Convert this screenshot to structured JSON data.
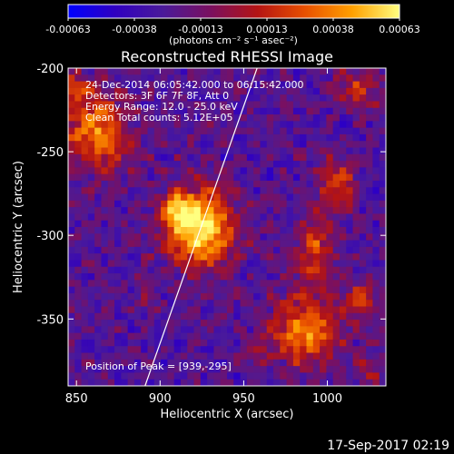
{
  "chart_data": {
    "type": "heatmap",
    "title": "Reconstructed RHESSI Image",
    "colorbar": {
      "ticks": [
        "-0.00063",
        "-0.00038",
        "-0.00013",
        "0.00013",
        "0.00038",
        "0.00063"
      ],
      "unit_label": "(photons cm⁻² s⁻¹ asec⁻²)",
      "range": [
        -0.00063,
        0.00063
      ],
      "colors": [
        "#0000ff",
        "#3000c0",
        "#4a1a9a",
        "#7a1060",
        "#b41414",
        "#e85000",
        "#ffa000",
        "#ffff80"
      ]
    },
    "xlabel": "Heliocentric X (arcsec)",
    "ylabel": "Heliocentric Y (arcsec)",
    "xlim": [
      845,
      1035
    ],
    "ylim": [
      -390,
      -200
    ],
    "xticks": [
      "850",
      "900",
      "950",
      "1000"
    ],
    "xtick_values": [
      850,
      900,
      950,
      1000
    ],
    "yticks": [
      "-200",
      "-250",
      "-300",
      "-350"
    ],
    "ytick_values": [
      -200,
      -250,
      -300,
      -350
    ],
    "annotations": [
      "24-Dec-2014 06:05:42.000 to 06:15:42.000",
      "Detectors: 3F 6F 7F 8F, Att 0",
      "Energy Range: 12.0 - 25.0 keV",
      "Clean     Total counts: 5.12E+05"
    ],
    "peak_label": "Position of Peak = [939,-295]",
    "peak": {
      "x": 939,
      "y": -295
    },
    "limb_line": [
      {
        "x": 891,
        "y": -390
      },
      {
        "x": 958,
        "y": -200
      }
    ],
    "sources": [
      {
        "x": 924,
        "y": -296,
        "sx": 14,
        "sy": 16,
        "amp": 1.0
      },
      {
        "x": 910,
        "y": -283,
        "sx": 8,
        "sy": 7,
        "amp": 0.45
      },
      {
        "x": 862,
        "y": -238,
        "sx": 14,
        "sy": 16,
        "amp": 0.68
      },
      {
        "x": 847,
        "y": -213,
        "sx": 7,
        "sy": 8,
        "amp": 0.35
      },
      {
        "x": 1006,
        "y": -270,
        "sx": 8,
        "sy": 11,
        "amp": 0.5
      },
      {
        "x": 992,
        "y": -310,
        "sx": 8,
        "sy": 14,
        "amp": 0.5
      },
      {
        "x": 987,
        "y": -357,
        "sx": 14,
        "sy": 14,
        "amp": 0.72
      },
      {
        "x": 1020,
        "y": -338,
        "sx": 7,
        "sy": 7,
        "amp": 0.4
      },
      {
        "x": 1018,
        "y": -212,
        "sx": 10,
        "sy": 8,
        "amp": 0.4
      },
      {
        "x": 1024,
        "y": -380,
        "sx": 6,
        "sy": 6,
        "amp": 0.3
      },
      {
        "x": 955,
        "y": -370,
        "sx": 6,
        "sy": 6,
        "amp": 0.25
      },
      {
        "x": 893,
        "y": -340,
        "sx": 5,
        "sy": 5,
        "amp": 0.2
      }
    ],
    "footer_timestamp": "17-Sep-2017 02:19"
  }
}
